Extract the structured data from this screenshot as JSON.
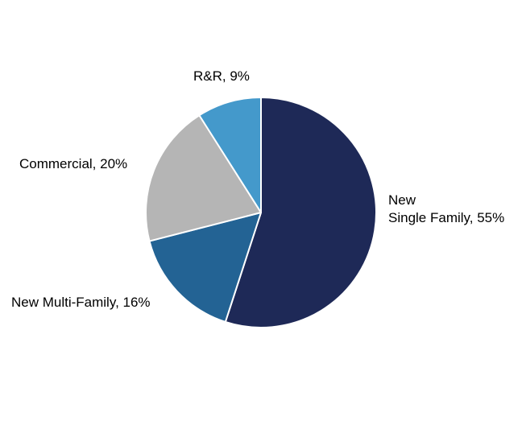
{
  "chart_data": {
    "type": "pie",
    "slices": [
      {
        "label": "New Single Family, 55%",
        "label_lines": [
          "New",
          "Single Family, 55%"
        ],
        "value": 55,
        "color": "#1e2957"
      },
      {
        "label": "New Multi-Family, 16%",
        "label_lines": [
          "New Multi-Family, 16%"
        ],
        "value": 16,
        "color": "#236394"
      },
      {
        "label": "Commercial, 20%",
        "label_lines": [
          "Commercial, 20%"
        ],
        "value": 20,
        "color": "#b5b5b5"
      },
      {
        "label": "R&R, 9%",
        "label_lines": [
          "R&R, 9%"
        ],
        "value": 9,
        "color": "#4499cb"
      }
    ],
    "start_angle": "top",
    "direction": "clockwise",
    "legend": "none"
  }
}
